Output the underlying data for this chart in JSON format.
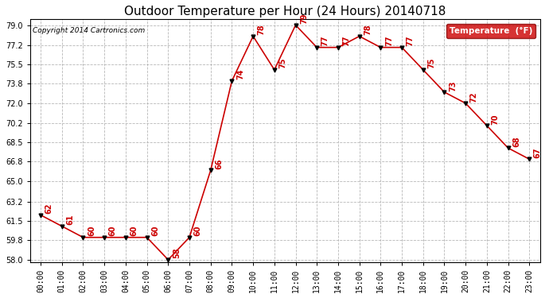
{
  "title": "Outdoor Temperature per Hour (24 Hours) 20140718",
  "copyright": "Copyright 2014 Cartronics.com",
  "legend_label": "Temperature  (°F)",
  "hours": [
    "00:00",
    "01:00",
    "02:00",
    "03:00",
    "04:00",
    "05:00",
    "06:00",
    "07:00",
    "08:00",
    "09:00",
    "10:00",
    "11:00",
    "12:00",
    "13:00",
    "14:00",
    "15:00",
    "16:00",
    "17:00",
    "18:00",
    "19:00",
    "20:00",
    "21:00",
    "22:00",
    "23:00"
  ],
  "temps": [
    62,
    61,
    60,
    60,
    60,
    60,
    58,
    60,
    66,
    74,
    78,
    75,
    79,
    77,
    77,
    78,
    77,
    77,
    75,
    73,
    72,
    70,
    68,
    67
  ],
  "line_color": "#cc0000",
  "marker_color": "black",
  "bg_color": "#ffffff",
  "grid_color": "#b0b0b0",
  "ylim_min": 58.0,
  "ylim_max": 79.0,
  "yticks": [
    58.0,
    59.8,
    61.5,
    63.2,
    65.0,
    66.8,
    68.5,
    70.2,
    72.0,
    73.8,
    75.5,
    77.2,
    79.0
  ],
  "title_fontsize": 11,
  "tick_fontsize": 7,
  "annot_fontsize": 7,
  "legend_bg": "#cc0000",
  "legend_text_color": "#ffffff"
}
